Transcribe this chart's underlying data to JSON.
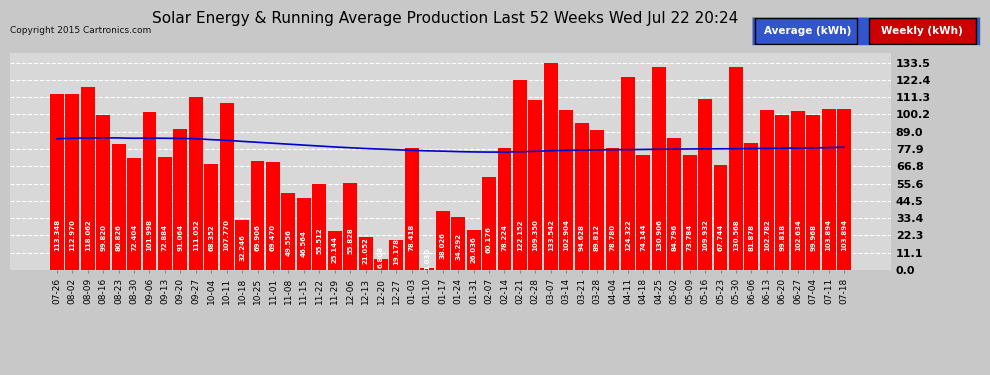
{
  "title": "Solar Energy & Running Average Production Last 52 Weeks Wed Jul 22 20:24",
  "copyright": "Copyright 2015 Cartronics.com",
  "legend_avg": "Average (kWh)",
  "legend_weekly": "Weekly (kWh)",
  "bar_color": "#ff0000",
  "avg_line_color": "#0000cd",
  "background_color": "#c8c8c8",
  "plot_bg_color": "#d8d8d8",
  "ytick_values": [
    0.0,
    11.1,
    22.3,
    33.4,
    44.5,
    55.6,
    66.8,
    77.9,
    89.0,
    100.2,
    111.3,
    122.4,
    133.5
  ],
  "xlabels": [
    "07-26",
    "08-02",
    "08-09",
    "08-16",
    "08-23",
    "08-30",
    "09-06",
    "09-13",
    "09-20",
    "09-27",
    "10-04",
    "10-11",
    "10-18",
    "10-25",
    "11-01",
    "11-08",
    "11-15",
    "11-22",
    "11-29",
    "12-06",
    "12-13",
    "12-20",
    "12-27",
    "01-03",
    "01-10",
    "01-17",
    "01-24",
    "01-31",
    "02-07",
    "02-14",
    "02-21",
    "02-28",
    "03-07",
    "03-14",
    "03-21",
    "03-28",
    "04-04",
    "04-11",
    "04-18",
    "04-25",
    "05-02",
    "05-09",
    "05-16",
    "05-23",
    "05-30",
    "06-06",
    "06-13",
    "06-20",
    "06-27",
    "07-04",
    "07-11",
    "07-18"
  ],
  "weekly_values": [
    113.348,
    112.97,
    118.062,
    99.82,
    80.826,
    72.404,
    101.998,
    72.884,
    91.064,
    111.052,
    68.352,
    107.77,
    32.246,
    69.906,
    69.47,
    49.556,
    46.564,
    55.512,
    25.144,
    55.828,
    21.052,
    6.808,
    19.178,
    78.418,
    1.03,
    38.026,
    34.292,
    26.036,
    60.176,
    78.224,
    122.152,
    109.35,
    133.542,
    102.904,
    94.628,
    89.812,
    78.78,
    124.322,
    74.144,
    130.906,
    84.796,
    73.784,
    109.932,
    67.744,
    130.568,
    81.878,
    102.782,
    99.818,
    102.634,
    99.968,
    103.894,
    103.894
  ],
  "avg_values": [
    84.5,
    84.8,
    85.0,
    85.1,
    85.0,
    84.8,
    84.9,
    84.8,
    84.7,
    84.5,
    83.9,
    83.5,
    82.8,
    82.2,
    81.6,
    81.0,
    80.4,
    79.8,
    79.2,
    78.7,
    78.2,
    77.8,
    77.4,
    77.0,
    76.7,
    76.5,
    76.2,
    76.0,
    75.9,
    75.9,
    76.1,
    76.4,
    76.8,
    77.0,
    77.2,
    77.3,
    77.4,
    77.5,
    77.6,
    77.7,
    77.8,
    77.9,
    78.0,
    78.0,
    78.1,
    78.2,
    78.3,
    78.4,
    78.5,
    78.6,
    78.8,
    79.0
  ],
  "ylim": [
    0,
    140
  ],
  "title_fontsize": 11,
  "bar_label_fontsize": 5.0,
  "xlabel_fontsize": 6.5,
  "ylabel_fontsize": 8.0,
  "grid_color": "#ffffff",
  "grid_style": "--"
}
